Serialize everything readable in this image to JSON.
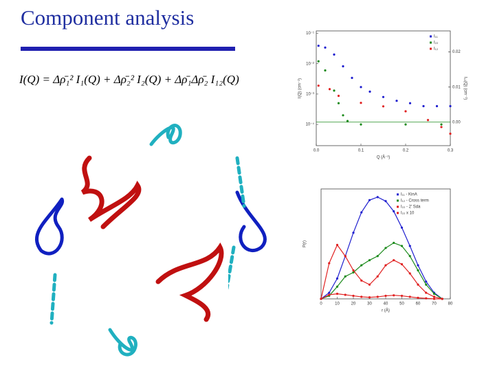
{
  "header": {
    "title": "Component analysis",
    "equation": "I(Q) = Δρ̄₁² I₁(Q) + Δρ̄₂² I₂(Q) + Δρ̄₁Δρ̄₂ I₁₂(Q)"
  },
  "figures": [
    {
      "type": "scatter",
      "xlabel": "Q (Å⁻¹)",
      "ylabel": "I(Q) (cm⁻¹)",
      "y2label": "I₁₂(Q) (cm⁻¹)",
      "xlim": [
        0,
        0.3
      ],
      "xticks": [
        {
          "value": 0,
          "label": "0.0"
        },
        0.1,
        0.2,
        0.3
      ],
      "ylog": true,
      "ylim": [
        2e-05,
        0.12
      ],
      "yticks": [
        {
          "value": 0.1,
          "label": "10⁻¹"
        },
        {
          "value": 0.01,
          "label": "10⁻²"
        },
        {
          "value": 0.001,
          "label": "10⁻³"
        },
        {
          "value": 0.0001,
          "label": "10⁻⁴"
        }
      ],
      "y2lim": [
        -0.0067,
        0.026
      ],
      "y2ticks": [
        {
          "value": 0,
          "label": "0.00"
        },
        {
          "value": 0.01,
          "label": "0.01"
        },
        {
          "value": 0.02,
          "label": "0.02"
        }
      ],
      "series": [
        {
          "name": "I₁₁",
          "color": "#1f1fcf",
          "x": [
            0.005,
            0.02,
            0.04,
            0.06,
            0.08,
            0.1,
            0.12,
            0.15,
            0.18,
            0.21,
            0.24,
            0.27,
            0.3
          ],
          "values": [
            0.039,
            0.034,
            0.02,
            0.0082,
            0.0034,
            0.0017,
            0.0012,
            0.0008,
            0.0006,
            0.0005,
            0.0004,
            0.0004,
            0.0004
          ]
        },
        {
          "name": "I₂₂",
          "color": "#1a8a1a",
          "x": [
            0.005,
            0.02,
            0.04,
            0.05,
            0.06,
            0.07,
            0.1,
            0.2,
            0.28
          ],
          "values": [
            0.012,
            0.006,
            0.0013,
            0.0005,
            0.0002,
            0.00013,
            0.0001,
            0.0001,
            0.0001
          ]
        },
        {
          "name": "I₁₂",
          "color": "#e02020",
          "axis": "y2",
          "x": [
            0.005,
            0.03,
            0.05,
            0.1,
            0.15,
            0.2,
            0.25,
            0.28,
            0.3
          ],
          "values": [
            0.0104,
            0.0094,
            0.0075,
            0.0055,
            0.0045,
            0.0031,
            0.0006,
            -0.0014,
            -0.0033
          ]
        }
      ]
    },
    {
      "type": "line",
      "xlabel": "r (Å)",
      "ylabel": "P(r)",
      "xlim": [
        0,
        80
      ],
      "xticks": [
        0,
        10,
        20,
        30,
        40,
        50,
        60,
        70,
        80
      ],
      "ylim": [
        0,
        1.08
      ],
      "x": [
        0,
        5,
        10,
        15,
        20,
        25,
        30,
        35,
        40,
        45,
        50,
        55,
        60,
        65,
        70,
        75
      ],
      "series": [
        {
          "name": "I₁₁ - KinA",
          "color": "#1f1fcf",
          "values": [
            0,
            0.06,
            0.2,
            0.42,
            0.65,
            0.85,
            0.97,
            1.0,
            0.96,
            0.86,
            0.7,
            0.52,
            0.33,
            0.17,
            0.06,
            0
          ]
        },
        {
          "name": "I₁₂ - Cross term",
          "color": "#1a8a1a",
          "values": [
            0,
            0.03,
            0.12,
            0.22,
            0.26,
            0.33,
            0.38,
            0.42,
            0.5,
            0.55,
            0.52,
            0.42,
            0.28,
            0.14,
            0.05,
            0
          ]
        },
        {
          "name": "I₂₂ - 2' Sda",
          "color": "#e02020",
          "values": [
            0,
            0.04,
            0.05,
            0.04,
            0.03,
            0.02,
            0.015,
            0.02,
            0.03,
            0.035,
            0.03,
            0.02,
            0.01,
            0.005,
            0,
            0
          ]
        },
        {
          "name": "I₂₂ x 10",
          "color": "#e02020",
          "values": [
            0,
            0.35,
            0.53,
            0.42,
            0.28,
            0.18,
            0.14,
            0.22,
            0.33,
            0.38,
            0.34,
            0.25,
            0.14,
            0.06,
            0.02,
            0
          ]
        }
      ]
    }
  ]
}
